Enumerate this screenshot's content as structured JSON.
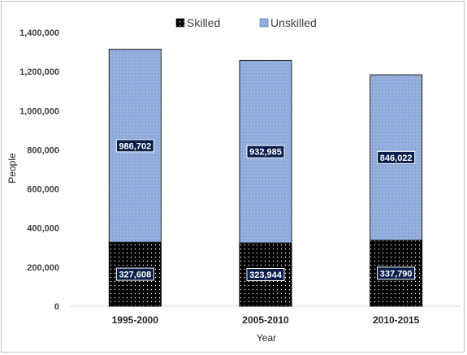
{
  "chart_data": {
    "type": "bar",
    "stacked": true,
    "categories": [
      "1995-2000",
      "2005-2010",
      "2010-2015"
    ],
    "series": [
      {
        "name": "Skilled",
        "values": [
          327608,
          323944,
          337790
        ],
        "color": "#000000"
      },
      {
        "name": "Unskilled",
        "values": [
          986702,
          932985,
          846022
        ],
        "color": "#8eaadb"
      }
    ],
    "data_labels": {
      "Skilled": [
        "327,608",
        "323,944",
        "337,790"
      ],
      "Unskilled": [
        "986,702",
        "932,985",
        "846,022"
      ]
    },
    "xlabel": "Year",
    "ylabel": "People",
    "ylim": [
      0,
      1400000
    ],
    "yticks": [
      0,
      200000,
      400000,
      600000,
      800000,
      1000000,
      1200000,
      1400000
    ],
    "ytick_labels": [
      "0",
      "200,000",
      "400,000",
      "600,000",
      "800,000",
      "1,000,000",
      "1,200,000",
      "1,400,000"
    ],
    "grid": false,
    "legend_position": "top"
  }
}
